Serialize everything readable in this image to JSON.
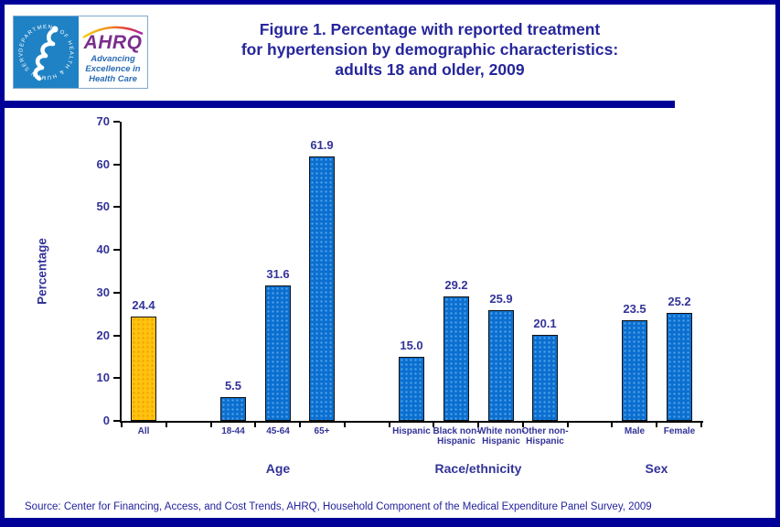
{
  "header": {
    "logo": {
      "ring_text": "DEPARTMENT OF HEALTH & HUMAN SERVICES · USA",
      "acronym": "AHRQ",
      "tagline_lines": [
        "Advancing",
        "Excellence in",
        "Health Care"
      ]
    },
    "title_lines": [
      "Figure 1. Percentage with reported treatment",
      "for hypertension by demographic characteristics:",
      "adults 18 and older, 2009"
    ]
  },
  "chart_data": {
    "type": "bar",
    "title": "Figure 1. Percentage with reported treatment for hypertension by demographic characteristics: adults 18 and older, 2009",
    "xlabel": "",
    "ylabel": "Percentage",
    "ylim": [
      0,
      70
    ],
    "yticks": [
      0,
      10,
      20,
      30,
      40,
      50,
      60,
      70
    ],
    "grid": false,
    "legend_position": "none",
    "categories": [
      "All",
      "18-44",
      "45-64",
      "65+",
      "Hispanic",
      "Black non-Hispanic",
      "White non-Hispanic",
      "Other non-Hispanic",
      "Male",
      "Female"
    ],
    "values": [
      24.4,
      5.5,
      31.6,
      61.9,
      15.0,
      29.2,
      25.9,
      20.1,
      23.5,
      25.2
    ],
    "num_slots": 13,
    "bars": [
      {
        "label_lines": [
          "All"
        ],
        "value": 24.4,
        "value_label": "24.4",
        "color_key": "gold",
        "slot": 0
      },
      {
        "label_lines": [
          "18-44"
        ],
        "value": 5.5,
        "value_label": "5.5",
        "color_key": "blue",
        "slot": 2
      },
      {
        "label_lines": [
          "45-64"
        ],
        "value": 31.6,
        "value_label": "31.6",
        "color_key": "blue",
        "slot": 3
      },
      {
        "label_lines": [
          "65+"
        ],
        "value": 61.9,
        "value_label": "61.9",
        "color_key": "blue",
        "slot": 4
      },
      {
        "label_lines": [
          "Hispanic"
        ],
        "value": 15.0,
        "value_label": "15.0",
        "color_key": "blue",
        "slot": 6
      },
      {
        "label_lines": [
          "Black non-",
          "Hispanic"
        ],
        "value": 29.2,
        "value_label": "29.2",
        "color_key": "blue",
        "slot": 7
      },
      {
        "label_lines": [
          "White non-",
          "Hispanic"
        ],
        "value": 25.9,
        "value_label": "25.9",
        "color_key": "blue",
        "slot": 8
      },
      {
        "label_lines": [
          "Other non-",
          "Hispanic"
        ],
        "value": 20.1,
        "value_label": "20.1",
        "color_key": "blue",
        "slot": 9
      },
      {
        "label_lines": [
          "Male"
        ],
        "value": 23.5,
        "value_label": "23.5",
        "color_key": "blue",
        "slot": 11
      },
      {
        "label_lines": [
          "Female"
        ],
        "value": 25.2,
        "value_label": "25.2",
        "color_key": "blue",
        "slot": 12
      }
    ],
    "groups": [
      {
        "label": "Age",
        "slots": [
          2,
          4
        ]
      },
      {
        "label": "Race/ethnicity",
        "slots": [
          6,
          9
        ]
      },
      {
        "label": "Sex",
        "slots": [
          11,
          12
        ]
      }
    ]
  },
  "source": "Source: Center for Financing, Access, and Cost Trends, AHRQ, Household Component of the Medical Expenditure Panel Survey, 2009",
  "colors": {
    "frame_navy": "#000099",
    "title_text": "#26269C",
    "chart_text": "#333399",
    "source_text": "#22229E",
    "bar_blue": "#0B6FD0",
    "bar_gold": "#FFC20E",
    "hhs_blue": "#1F82C4",
    "ahrq_purple": "#7B2E8E",
    "tagline_blue": "#2A6CB5"
  }
}
